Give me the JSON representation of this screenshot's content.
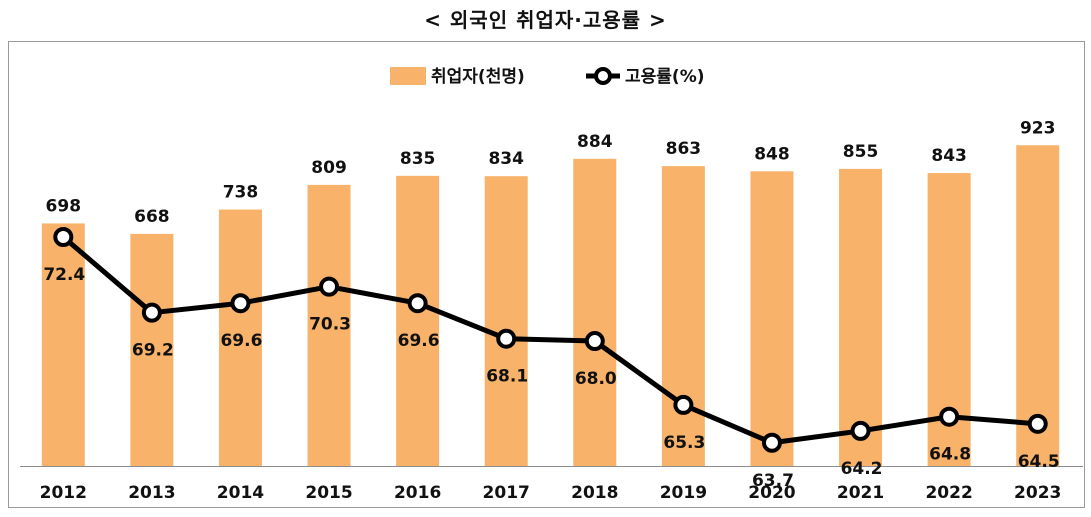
{
  "title": "< 외국인 취업자·고용률 >",
  "chart_data": {
    "type": "bar",
    "categories": [
      "2012",
      "2013",
      "2014",
      "2015",
      "2016",
      "2017",
      "2018",
      "2019",
      "2020",
      "2021",
      "2022",
      "2023"
    ],
    "series": [
      {
        "name": "취업자(천명)",
        "type": "bar",
        "color": "#F8B26A",
        "values": [
          698,
          668,
          738,
          809,
          835,
          834,
          884,
          863,
          848,
          855,
          843,
          923
        ]
      },
      {
        "name": "고용률(%)",
        "type": "line",
        "color": "#000000",
        "values": [
          72.4,
          69.2,
          69.6,
          70.3,
          69.6,
          68.1,
          68.0,
          65.3,
          63.7,
          64.2,
          64.8,
          64.5
        ]
      }
    ],
    "legend": "top-center",
    "grid": false
  }
}
